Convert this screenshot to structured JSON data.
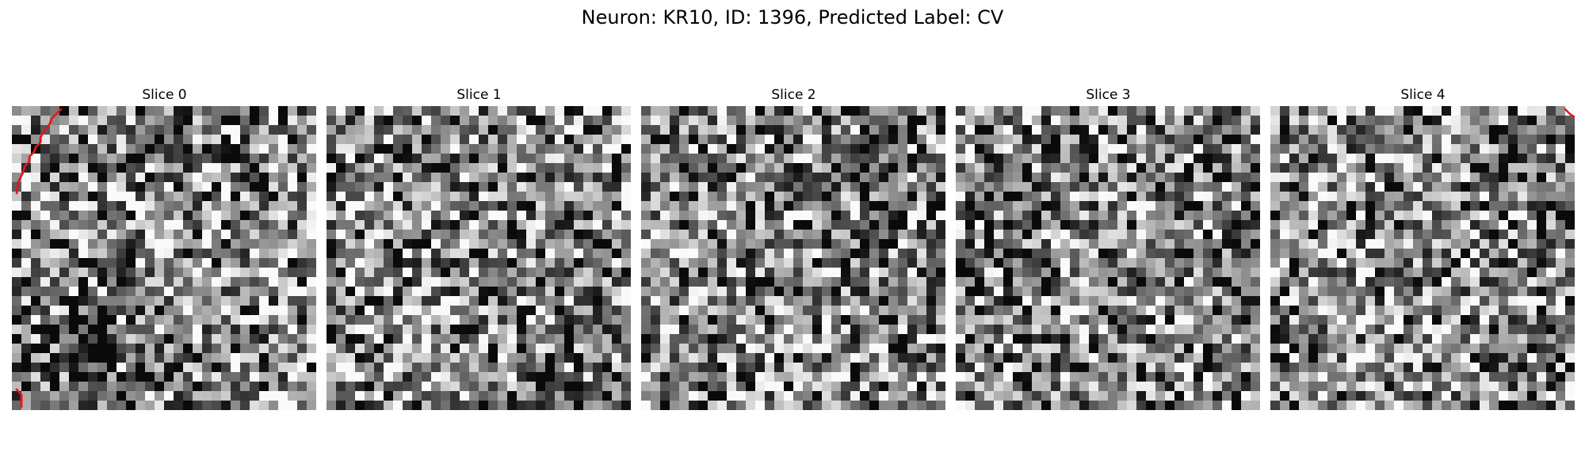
{
  "figure": {
    "title": "Neuron: KR10, ID: 1396, Predicted Label: CV",
    "colors": {
      "background": "#ffffff",
      "contour": "#e8141b",
      "text": "#000000"
    },
    "colormap": "gray",
    "grid_size": 32
  },
  "slices": [
    {
      "label": "Slice 0"
    },
    {
      "label": "Slice 1"
    },
    {
      "label": "Slice 2"
    },
    {
      "label": "Slice 3"
    },
    {
      "label": "Slice 4"
    }
  ]
}
